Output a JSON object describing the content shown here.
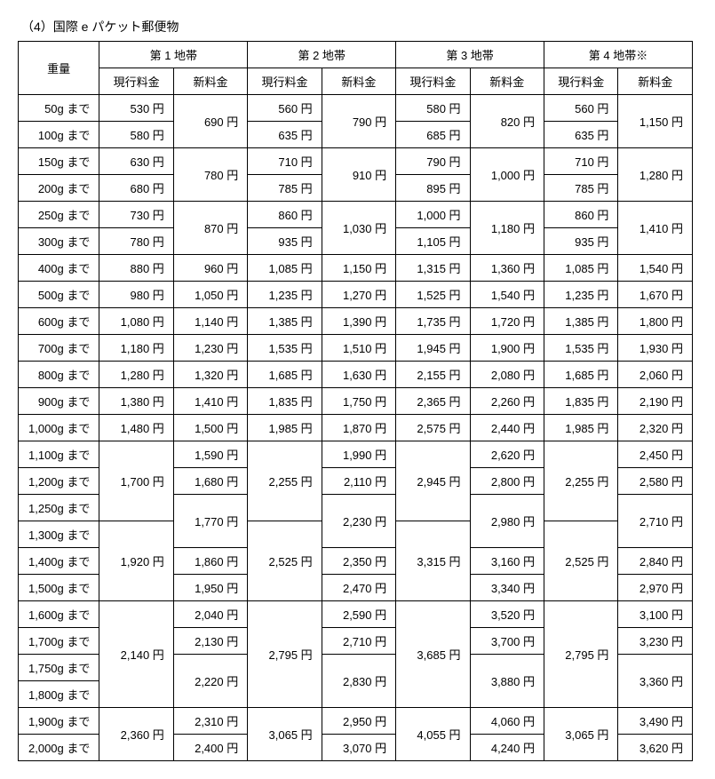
{
  "title": "（4）国際 e パケット郵便物",
  "headers": {
    "weight": "重量",
    "zones": [
      "第 1 地帯",
      "第 2 地帯",
      "第 3 地帯",
      "第 4 地帯※"
    ],
    "sub": [
      "現行料金",
      "新料金"
    ]
  },
  "weights": [
    "50g まで",
    "100g まで",
    "150g まで",
    "200g まで",
    "250g まで",
    "300g まで",
    "400g まで",
    "500g まで",
    "600g まで",
    "700g まで",
    "800g まで",
    "900g まで",
    "1,000g まで",
    "1,100g まで",
    "1,200g まで",
    "1,250g まで",
    "1,300g まで",
    "1,400g まで",
    "1,500g まで",
    "1,600g まで",
    "1,700g まで",
    "1,750g まで",
    "1,800g まで",
    "1,900g まで",
    "2,000g まで"
  ],
  "currency": "円",
  "zone1": {
    "current": [
      "530",
      "580",
      "630",
      "680",
      "730",
      "780",
      "880",
      "980",
      "1,080",
      "1,180",
      "1,280",
      "1,380",
      "1,480"
    ],
    "current_merge_a": "1,700",
    "current_merge_b": "1,920",
    "current_merge_c": "2,140",
    "current_merge_d": "2,360",
    "new_pairs": [
      "690",
      "780",
      "870"
    ],
    "new_single": [
      "960",
      "1,050",
      "1,140",
      "1,230",
      "1,320",
      "1,410",
      "1,500"
    ],
    "new_tail": [
      "1,590",
      "1,680",
      "1,770",
      "1,860",
      "1,950",
      "2,040",
      "2,130",
      "2,220",
      "2,310",
      "2,400"
    ]
  },
  "zone2": {
    "current": [
      "560",
      "635",
      "710",
      "785",
      "860",
      "935",
      "1,085",
      "1,235",
      "1,385",
      "1,535",
      "1,685",
      "1,835",
      "1,985"
    ],
    "current_merge_a": "2,255",
    "current_merge_b": "2,525",
    "current_merge_c": "2,795",
    "current_merge_d": "3,065",
    "new_pairs": [
      "790",
      "910",
      "1,030"
    ],
    "new_single": [
      "1,150",
      "1,270",
      "1,390",
      "1,510",
      "1,630",
      "1,750",
      "1,870"
    ],
    "new_tail": [
      "1,990",
      "2,110",
      "2,230",
      "2,350",
      "2,470",
      "2,590",
      "2,710",
      "2,830",
      "2,950",
      "3,070"
    ]
  },
  "zone3": {
    "current": [
      "580",
      "685",
      "790",
      "895",
      "1,000",
      "1,105",
      "1,315",
      "1,525",
      "1,735",
      "1,945",
      "2,155",
      "2,365",
      "2,575"
    ],
    "current_merge_a": "2,945",
    "current_merge_b": "3,315",
    "current_merge_c": "3,685",
    "current_merge_d": "4,055",
    "new_pairs": [
      "820",
      "1,000",
      "1,180"
    ],
    "new_single": [
      "1,360",
      "1,540",
      "1,720",
      "1,900",
      "2,080",
      "2,260",
      "2,440"
    ],
    "new_tail": [
      "2,620",
      "2,800",
      "2,980",
      "3,160",
      "3,340",
      "3,520",
      "3,700",
      "3,880",
      "4,060",
      "4,240"
    ]
  },
  "zone4": {
    "current": [
      "560",
      "635",
      "710",
      "785",
      "860",
      "935",
      "1,085",
      "1,235",
      "1,385",
      "1,535",
      "1,685",
      "1,835",
      "1,985"
    ],
    "current_merge_a": "2,255",
    "current_merge_b": "2,525",
    "current_merge_c": "2,795",
    "current_merge_d": "3,065",
    "new_pairs": [
      "1,150",
      "1,280",
      "1,410"
    ],
    "new_single": [
      "1,540",
      "1,670",
      "1,800",
      "1,930",
      "2,060",
      "2,190",
      "2,320"
    ],
    "new_tail": [
      "2,450",
      "2,580",
      "2,710",
      "2,840",
      "2,970",
      "3,100",
      "3,230",
      "3,360",
      "3,490",
      "3,620"
    ]
  }
}
